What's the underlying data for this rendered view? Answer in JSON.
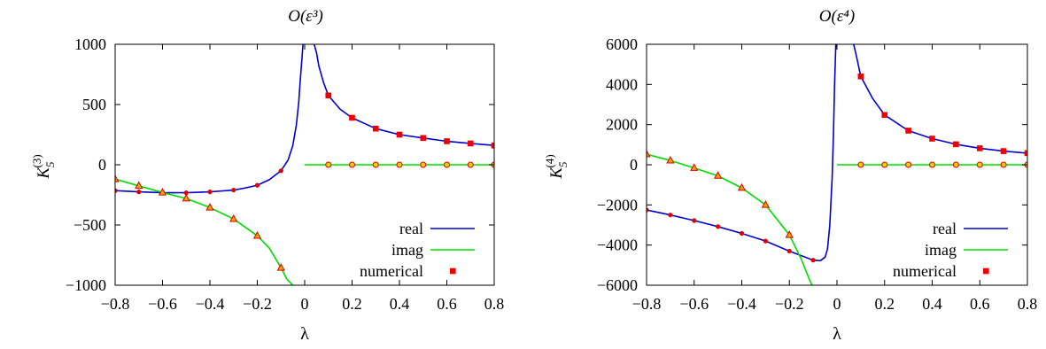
{
  "chart_data": [
    {
      "type": "line",
      "title": "O(ε³)",
      "xlabel": "λ",
      "ylabel": "K5(3)",
      "xlim": [
        -0.8,
        0.8
      ],
      "ylim": [
        -1000,
        1000
      ],
      "xticks": [
        -0.8,
        -0.6,
        -0.4,
        -0.2,
        0,
        0.2,
        0.4,
        0.6,
        0.8
      ],
      "yticks": [
        -1000,
        -500,
        0,
        500,
        1000
      ],
      "xtick_labels": [
        "−0.8",
        "−0.6",
        "−0.4",
        "−0.2",
        "0",
        "0.2",
        "0.4",
        "0.6",
        "0.8"
      ],
      "ytick_labels": [
        "−1000",
        "−500",
        "0",
        "500",
        "1000"
      ],
      "legend_position": "bottom-right",
      "legend": [
        "real",
        "imag",
        "numerical"
      ],
      "series": [
        {
          "name": "real",
          "color": "#0000cc",
          "x": [
            -0.8,
            -0.7,
            -0.6,
            -0.5,
            -0.4,
            -0.3,
            -0.25,
            -0.2,
            -0.15,
            -0.1,
            -0.07,
            -0.05,
            -0.035,
            -0.025,
            -0.018,
            -0.012,
            -0.007
          ],
          "y": [
            -215,
            -225,
            -232,
            -232,
            -225,
            -210,
            -193,
            -170,
            -125,
            -50,
            40,
            160,
            330,
            520,
            720,
            870,
            1000
          ]
        },
        {
          "name": "real",
          "color": "#0000cc",
          "x": [
            0.04,
            0.05,
            0.06,
            0.08,
            0.1,
            0.15,
            0.2,
            0.3,
            0.4,
            0.5,
            0.6,
            0.7,
            0.8
          ],
          "y": [
            1000,
            930,
            820,
            680,
            575,
            460,
            390,
            300,
            250,
            222,
            195,
            177,
            160
          ]
        },
        {
          "name": "imag",
          "color": "#00dd00",
          "x": [
            -0.8,
            -0.7,
            -0.6,
            -0.5,
            -0.4,
            -0.3,
            -0.2,
            -0.15,
            -0.1,
            -0.075,
            -0.05
          ],
          "y": [
            -120,
            -175,
            -230,
            -280,
            -355,
            -450,
            -590,
            -690,
            -855,
            -950,
            -1000
          ]
        },
        {
          "name": "imag",
          "color": "#00dd00",
          "x": [
            0,
            0.8
          ],
          "y": [
            0,
            0
          ]
        }
      ],
      "markers": [
        {
          "style": "dot",
          "color": "#dd0000",
          "x": [
            -0.8,
            -0.7,
            -0.6,
            -0.5,
            -0.4,
            -0.3,
            -0.2,
            -0.1
          ],
          "y": [
            -215,
            -225,
            -232,
            -232,
            -225,
            -210,
            -170,
            -50
          ]
        },
        {
          "style": "triangle",
          "color": "#dd0000",
          "fill": "#e6a800",
          "x": [
            -0.8,
            -0.7,
            -0.6,
            -0.5,
            -0.4,
            -0.3,
            -0.2,
            -0.1
          ],
          "y": [
            -120,
            -175,
            -230,
            -280,
            -355,
            -450,
            -590,
            -855
          ]
        },
        {
          "style": "square",
          "color": "#ee0000",
          "x": [
            0.1,
            0.2,
            0.3,
            0.4,
            0.5,
            0.6,
            0.7,
            0.8
          ],
          "y": [
            575,
            390,
            300,
            250,
            222,
            195,
            177,
            160
          ]
        },
        {
          "style": "circle",
          "color": "#dd0000",
          "fill": "#f2d000",
          "x": [
            0.1,
            0.2,
            0.3,
            0.4,
            0.5,
            0.6,
            0.7,
            0.8
          ],
          "y": [
            0,
            0,
            0,
            0,
            0,
            0,
            0,
            0
          ]
        }
      ]
    },
    {
      "type": "line",
      "title": "O(ε⁴)",
      "xlabel": "λ",
      "ylabel": "K5(4)",
      "xlim": [
        -0.8,
        0.8
      ],
      "ylim": [
        -6000,
        6000
      ],
      "xticks": [
        -0.8,
        -0.6,
        -0.4,
        -0.2,
        0,
        0.2,
        0.4,
        0.6,
        0.8
      ],
      "yticks": [
        -6000,
        -4000,
        -2000,
        0,
        2000,
        4000,
        6000
      ],
      "xtick_labels": [
        "−0.8",
        "−0.6",
        "−0.4",
        "−0.2",
        "0",
        "0.2",
        "0.4",
        "0.6",
        "0.8"
      ],
      "ytick_labels": [
        "−6000",
        "−4000",
        "−2000",
        "0",
        "2000",
        "4000",
        "6000"
      ],
      "legend_position": "bottom-right",
      "legend": [
        "real",
        "imag",
        "numerical"
      ],
      "series": [
        {
          "name": "real",
          "color": "#0000cc",
          "x": [
            -0.8,
            -0.7,
            -0.6,
            -0.5,
            -0.4,
            -0.3,
            -0.2,
            -0.1,
            -0.07,
            -0.05,
            -0.04,
            -0.03,
            -0.02,
            -0.015,
            -0.01,
            -0.005
          ],
          "y": [
            -2250,
            -2500,
            -2780,
            -3080,
            -3420,
            -3800,
            -4300,
            -4750,
            -4780,
            -4600,
            -4200,
            -3000,
            -600,
            1500,
            4000,
            6000
          ]
        },
        {
          "name": "real",
          "color": "#0000cc",
          "x": [
            0.07,
            0.08,
            0.1,
            0.15,
            0.2,
            0.3,
            0.4,
            0.5,
            0.6,
            0.7,
            0.8
          ],
          "y": [
            6000,
            5500,
            4400,
            3300,
            2480,
            1700,
            1300,
            1020,
            820,
            680,
            580
          ]
        },
        {
          "name": "imag",
          "color": "#00dd00",
          "x": [
            -0.8,
            -0.7,
            -0.6,
            -0.5,
            -0.4,
            -0.3,
            -0.2,
            -0.15,
            -0.12,
            -0.105
          ],
          "y": [
            520,
            210,
            -160,
            -550,
            -1150,
            -2000,
            -3500,
            -4700,
            -5600,
            -6000
          ]
        },
        {
          "name": "imag",
          "color": "#00dd00",
          "x": [
            0,
            0.8
          ],
          "y": [
            0,
            0
          ]
        }
      ],
      "markers": [
        {
          "style": "dot",
          "color": "#dd0000",
          "x": [
            -0.8,
            -0.7,
            -0.6,
            -0.5,
            -0.4,
            -0.3,
            -0.2,
            -0.1
          ],
          "y": [
            -2250,
            -2500,
            -2780,
            -3080,
            -3420,
            -3800,
            -4300,
            -4750
          ]
        },
        {
          "style": "triangle",
          "color": "#dd0000",
          "fill": "#e6a800",
          "x": [
            -0.8,
            -0.7,
            -0.6,
            -0.5,
            -0.4,
            -0.3,
            -0.2
          ],
          "y": [
            520,
            210,
            -160,
            -550,
            -1150,
            -2000,
            -3500
          ]
        },
        {
          "style": "square",
          "color": "#ee0000",
          "x": [
            0.1,
            0.2,
            0.3,
            0.4,
            0.5,
            0.6,
            0.7,
            0.8
          ],
          "y": [
            4400,
            2480,
            1700,
            1300,
            1020,
            820,
            680,
            580
          ]
        },
        {
          "style": "circle",
          "color": "#dd0000",
          "fill": "#f2d000",
          "x": [
            0.1,
            0.2,
            0.3,
            0.4,
            0.5,
            0.6,
            0.7,
            0.8
          ],
          "y": [
            0,
            0,
            0,
            0,
            0,
            0,
            0,
            0
          ]
        }
      ]
    }
  ]
}
